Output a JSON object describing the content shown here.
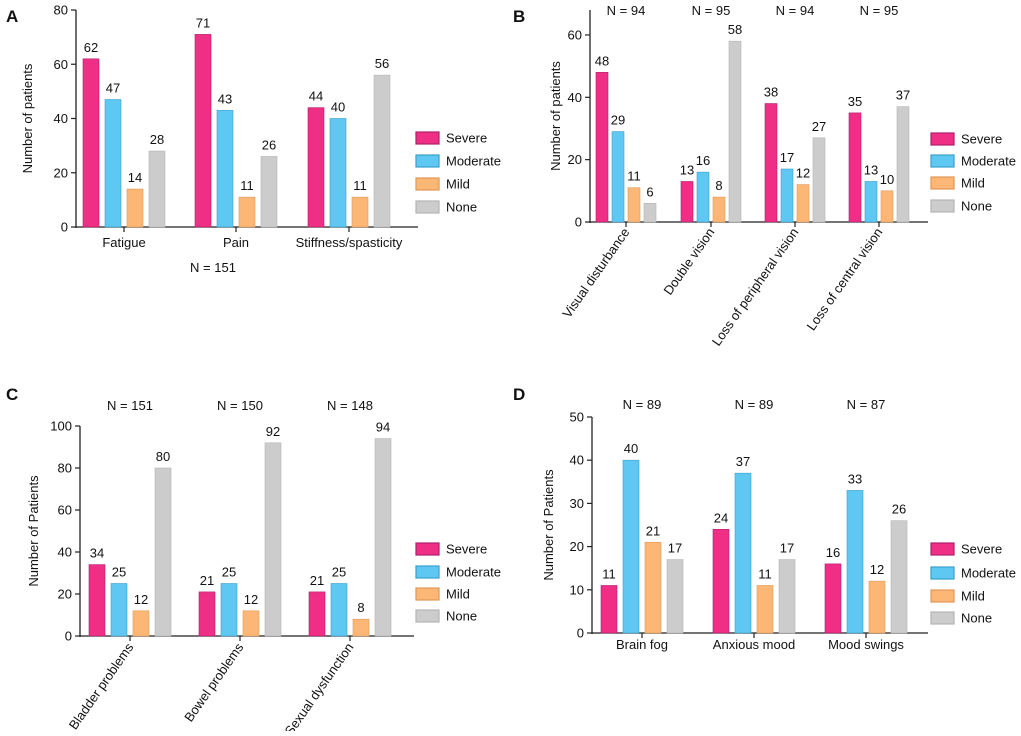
{
  "legend_labels": [
    "Severe",
    "Moderate",
    "Mild",
    "None"
  ],
  "series_colors": {
    "Severe": "#ee2f85",
    "Moderate": "#5ec8f2",
    "Mild": "#fcb777",
    "None": "#cccccc"
  },
  "legend_border_colors": {
    "Severe": "#b0206a",
    "Moderate": "#3a9fcb",
    "Mild": "#e09858",
    "None": "#b4b4b4"
  },
  "chart_data": [
    {
      "panel_label": "A",
      "type": "bar",
      "ylabel": "Number of patients",
      "ylim": [
        0,
        80
      ],
      "yticks": [
        "0",
        "20",
        "40",
        "60",
        "80"
      ],
      "categories": [
        "Fatigue",
        "Pain",
        "Stiffness/spasticity"
      ],
      "category_notes": [],
      "footnote": "N = 151",
      "series": [
        {
          "name": "Severe",
          "values": [
            62,
            71,
            44
          ]
        },
        {
          "name": "Moderate",
          "values": [
            47,
            43,
            40
          ]
        },
        {
          "name": "Mild",
          "values": [
            14,
            11,
            11
          ]
        },
        {
          "name": "None",
          "values": [
            28,
            26,
            56
          ]
        }
      ]
    },
    {
      "panel_label": "B",
      "type": "bar",
      "ylabel": "Number of patients",
      "ylim": [
        0,
        68
      ],
      "yticks": [
        "0",
        "20",
        "40",
        "60"
      ],
      "categories": [
        "Visual disturbance",
        "Double vision",
        "Loss of peripheral vision",
        "Loss of central vision"
      ],
      "category_notes": [
        "N = 94",
        "N = 95",
        "N = 94",
        "N = 95"
      ],
      "footnote": "",
      "series": [
        {
          "name": "Severe",
          "values": [
            48,
            13,
            38,
            35
          ]
        },
        {
          "name": "Moderate",
          "values": [
            29,
            16,
            17,
            13
          ]
        },
        {
          "name": "Mild",
          "values": [
            11,
            8,
            12,
            10
          ]
        },
        {
          "name": "None",
          "values": [
            6,
            58,
            27,
            37
          ]
        }
      ]
    },
    {
      "panel_label": "C",
      "type": "bar",
      "ylabel": "Number of Patients",
      "ylim": [
        0,
        100
      ],
      "yticks": [
        "0",
        "20",
        "40",
        "60",
        "80",
        "100"
      ],
      "categories": [
        "Bladder problems",
        "Bowel problems",
        "Sexual dysfunction"
      ],
      "category_notes": [
        "N = 151",
        "N = 150",
        "N = 148"
      ],
      "footnote": "",
      "series": [
        {
          "name": "Severe",
          "values": [
            34,
            21,
            21
          ]
        },
        {
          "name": "Moderate",
          "values": [
            25,
            25,
            25
          ]
        },
        {
          "name": "Mild",
          "values": [
            12,
            12,
            8
          ]
        },
        {
          "name": "None",
          "values": [
            80,
            92,
            94
          ]
        }
      ]
    },
    {
      "panel_label": "D",
      "type": "bar",
      "ylabel": "Number of Patients",
      "ylim": [
        0,
        50
      ],
      "yticks": [
        "0",
        "10",
        "20",
        "30",
        "40",
        "50"
      ],
      "categories": [
        "Brain fog",
        "Anxious mood",
        "Mood swings"
      ],
      "category_notes": [
        "N = 89",
        "N = 89",
        "N = 87"
      ],
      "footnote": "",
      "series": [
        {
          "name": "Severe",
          "values": [
            11,
            24,
            16
          ]
        },
        {
          "name": "Moderate",
          "values": [
            40,
            37,
            33
          ]
        },
        {
          "name": "Mild",
          "values": [
            21,
            11,
            12
          ]
        },
        {
          "name": "None",
          "values": [
            17,
            17,
            26
          ]
        }
      ]
    }
  ]
}
